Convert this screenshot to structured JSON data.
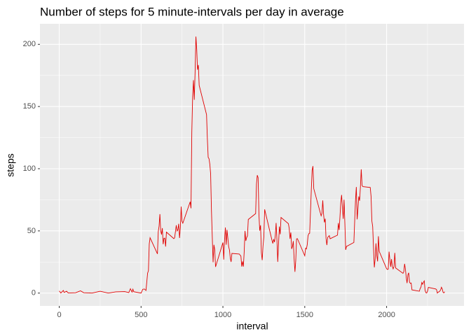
{
  "chart_data": {
    "type": "line",
    "title": "Number of steps for 5 minute-intervals per day in average",
    "x_label": "interval",
    "y_label": "steps",
    "color": "#e00000",
    "grid": true,
    "xlim": [
      -117.75,
      2472.75
    ],
    "ylim": [
      -10.3,
      216.5
    ],
    "xticks": [
      0,
      500,
      1000,
      1500,
      2000
    ],
    "yticks": [
      0,
      50,
      100,
      150,
      200
    ],
    "xminor": [
      250,
      750,
      1250,
      1750,
      2250
    ],
    "yminor": [
      25,
      75,
      125,
      175
    ],
    "x": [
      0,
      10,
      25,
      30,
      45,
      55,
      100,
      130,
      150,
      200,
      250,
      300,
      345,
      400,
      425,
      435,
      445,
      450,
      455,
      500,
      510,
      520,
      530,
      540,
      545,
      550,
      555,
      600,
      605,
      610,
      615,
      620,
      625,
      630,
      635,
      640,
      645,
      650,
      655,
      700,
      705,
      715,
      720,
      725,
      730,
      735,
      740,
      745,
      750,
      755,
      800,
      805,
      810,
      815,
      820,
      825,
      830,
      835,
      840,
      845,
      850,
      855,
      900,
      905,
      910,
      915,
      920,
      925,
      930,
      935,
      940,
      945,
      950,
      955,
      1000,
      1005,
      1010,
      1015,
      1020,
      1025,
      1030,
      1035,
      1040,
      1045,
      1050,
      1055,
      1100,
      1110,
      1115,
      1120,
      1125,
      1130,
      1135,
      1140,
      1145,
      1150,
      1155,
      1200,
      1205,
      1210,
      1215,
      1220,
      1225,
      1230,
      1235,
      1240,
      1245,
      1250,
      1255,
      1300,
      1305,
      1310,
      1315,
      1320,
      1325,
      1330,
      1335,
      1340,
      1345,
      1350,
      1355,
      1400,
      1405,
      1410,
      1415,
      1420,
      1425,
      1430,
      1435,
      1440,
      1445,
      1450,
      1455,
      1500,
      1505,
      1510,
      1515,
      1520,
      1525,
      1530,
      1535,
      1540,
      1545,
      1550,
      1555,
      1600,
      1605,
      1610,
      1615,
      1620,
      1625,
      1630,
      1635,
      1640,
      1645,
      1650,
      1655,
      1700,
      1705,
      1710,
      1715,
      1720,
      1725,
      1730,
      1735,
      1740,
      1745,
      1750,
      1755,
      1800,
      1805,
      1810,
      1815,
      1820,
      1825,
      1830,
      1835,
      1840,
      1845,
      1850,
      1855,
      1900,
      1905,
      1910,
      1915,
      1920,
      1925,
      1930,
      1935,
      1940,
      1945,
      1950,
      1955,
      2000,
      2005,
      2010,
      2015,
      2020,
      2025,
      2030,
      2035,
      2040,
      2045,
      2050,
      2055,
      2100,
      2105,
      2110,
      2115,
      2120,
      2125,
      2130,
      2135,
      2140,
      2145,
      2150,
      2155,
      2200,
      2205,
      2210,
      2215,
      2220,
      2225,
      2230,
      2235,
      2240,
      2245,
      2250,
      2255,
      2300,
      2305,
      2310,
      2315,
      2320,
      2325,
      2330,
      2335,
      2340,
      2345,
      2350,
      2355
    ],
    "values": [
      1.7,
      0.1,
      2.1,
      0.5,
      1.5,
      0.1,
      0.3,
      1.8,
      0.3,
      0,
      1.5,
      0,
      1,
      1.2,
      0.4,
      3.5,
      0.8,
      3.1,
      1.1,
      0,
      3,
      3.3,
      2.1,
      16,
      18,
      39.5,
      44.5,
      31.5,
      49.3,
      53.8,
      63.5,
      50,
      47.1,
      52.2,
      39.3,
      44,
      44.2,
      37.4,
      49,
      43.8,
      44.4,
      54.5,
      49.9,
      50.9,
      55.7,
      44.3,
      52.3,
      69.5,
      57.8,
      56.2,
      73.4,
      68.2,
      129.4,
      157.5,
      171.2,
      155.4,
      177.3,
      206.2,
      195.9,
      179.6,
      183.4,
      167,
      143.5,
      124,
      109.1,
      108.1,
      103.7,
      95.9,
      66.2,
      45.2,
      24.8,
      38.8,
      34.9,
      21.1,
      40.6,
      26.9,
      42.6,
      52.7,
      38.9,
      50.8,
      44.3,
      37.4,
      34.7,
      28.3,
      25.1,
      31.9,
      31.4,
      29.7,
      21.3,
      25.5,
      21.3,
      33.3,
      50,
      42,
      44.6,
      46,
      59.2,
      63.9,
      87.7,
      94.8,
      92.8,
      63.4,
      50.2,
      54.5,
      32.4,
      26.5,
      37.7,
      45.1,
      67.3,
      42.3,
      39.9,
      43.3,
      41,
      46.2,
      56.4,
      42.8,
      25.1,
      40,
      53.5,
      47.3,
      60.8,
      55.8,
      52,
      43.6,
      48.7,
      35.5,
      37.5,
      41.8,
      27.5,
      17.1,
      26.1,
      43.6,
      43.8,
      30,
      36.1,
      35.5,
      38.8,
      46,
      47.8,
      48.1,
      65.3,
      82.9,
      98.7,
      102.1,
      84,
      62.1,
      64.1,
      74.5,
      63.2,
      56.9,
      59.8,
      43.9,
      38.6,
      44.7,
      45.5,
      46.2,
      43.7,
      46.6,
      56.3,
      50.7,
      61.2,
      72.7,
      78.9,
      68.9,
      59.7,
      75.1,
      56.5,
      34.8,
      37.5,
      40.7,
      58,
      74.7,
      85.3,
      59.3,
      67.8,
      77.7,
      74.2,
      85.3,
      99.5,
      86.6,
      85.6,
      84.9,
      77.8,
      58,
      53.4,
      36.3,
      20.7,
      27.4,
      40,
      30.2,
      25.5,
      45.7,
      33.5,
      19.6,
      19,
      19.3,
      33.3,
      26.8,
      21.2,
      27.3,
      21.3,
      19.5,
      21.3,
      32.3,
      20.2,
      15.9,
      17.2,
      23.5,
      19.2,
      12.5,
      8,
      14.7,
      16.3,
      8.7,
      7.8,
      8.1,
      2.6,
      1.5,
      3.7,
      4.8,
      8.5,
      7.1,
      8.7,
      9.8,
      2.2,
      0.3,
      0.1,
      1.6,
      4.6,
      3.3,
      2.8,
      0,
      0.8,
      1,
      1.6,
      2.6,
      4.7,
      3.3,
      0.6,
      0.2,
      1.1
    ]
  }
}
